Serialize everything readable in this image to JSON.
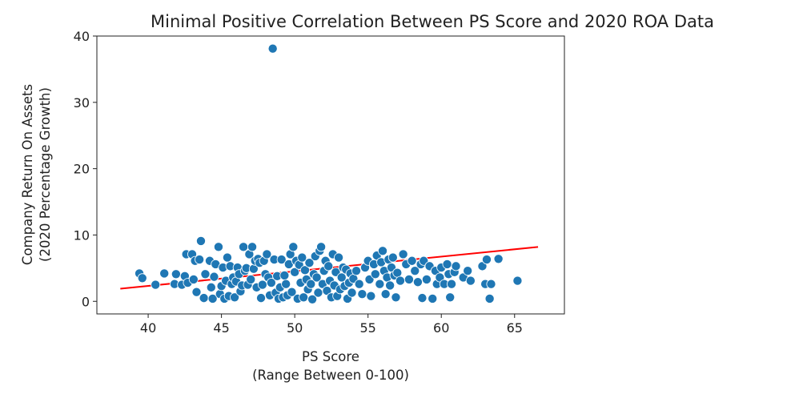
{
  "chart_data": {
    "type": "scatter",
    "title": "Minimal Positive Correlation Between PS Score and 2020 ROA Data",
    "xlabel": [
      "PS Score",
      "(Range Between 0-100)"
    ],
    "ylabel": [
      "Company Return On Assets",
      "(2020 Percentage Growth)"
    ],
    "xlim": [
      36.5,
      68.4
    ],
    "ylim": [
      -1.9,
      40.0
    ],
    "xticks": [
      40,
      45,
      50,
      55,
      60,
      65
    ],
    "yticks": [
      0,
      10,
      20,
      30,
      40
    ],
    "grid": false,
    "point_color": "#1f77b4",
    "trend_color": "#ff0000",
    "trendline": {
      "x": [
        38.1,
        66.6
      ],
      "y": [
        1.9,
        8.2
      ]
    },
    "points": [
      [
        39.4,
        4.2
      ],
      [
        39.6,
        3.5
      ],
      [
        40.5,
        2.5
      ],
      [
        41.1,
        4.2
      ],
      [
        41.8,
        2.6
      ],
      [
        41.9,
        4.1
      ],
      [
        42.3,
        2.5
      ],
      [
        42.5,
        3.8
      ],
      [
        42.6,
        7.1
      ],
      [
        42.7,
        2.8
      ],
      [
        43.0,
        7.1
      ],
      [
        43.1,
        3.3
      ],
      [
        43.2,
        6.1
      ],
      [
        43.3,
        1.4
      ],
      [
        43.5,
        6.3
      ],
      [
        43.6,
        9.1
      ],
      [
        43.8,
        0.5
      ],
      [
        43.9,
        4.1
      ],
      [
        44.2,
        6.1
      ],
      [
        44.3,
        2.1
      ],
      [
        44.4,
        0.4
      ],
      [
        44.5,
        3.7
      ],
      [
        44.6,
        5.6
      ],
      [
        44.8,
        8.2
      ],
      [
        44.9,
        1.1
      ],
      [
        45.0,
        2.3
      ],
      [
        45.1,
        5.1
      ],
      [
        45.2,
        0.4
      ],
      [
        45.3,
        3.1
      ],
      [
        45.4,
        6.6
      ],
      [
        45.5,
        0.8
      ],
      [
        45.6,
        5.3
      ],
      [
        45.7,
        2.6
      ],
      [
        45.8,
        3.6
      ],
      [
        45.9,
        0.6
      ],
      [
        46.0,
        3.0
      ],
      [
        46.1,
        5.1
      ],
      [
        46.2,
        4.1
      ],
      [
        46.3,
        1.5
      ],
      [
        46.4,
        2.4
      ],
      [
        46.5,
        8.2
      ],
      [
        46.6,
        4.6
      ],
      [
        46.7,
        5.0
      ],
      [
        46.8,
        2.5
      ],
      [
        46.9,
        7.1
      ],
      [
        47.0,
        3.3
      ],
      [
        47.1,
        8.2
      ],
      [
        47.2,
        4.9
      ],
      [
        47.3,
        6.1
      ],
      [
        47.4,
        2.1
      ],
      [
        47.5,
        6.4
      ],
      [
        47.6,
        5.8
      ],
      [
        47.7,
        0.5
      ],
      [
        47.8,
        2.5
      ],
      [
        47.9,
        6.1
      ],
      [
        48.0,
        4.1
      ],
      [
        48.1,
        7.1
      ],
      [
        48.2,
        3.6
      ],
      [
        48.3,
        0.9
      ],
      [
        48.4,
        2.8
      ],
      [
        48.5,
        38.1
      ],
      [
        48.6,
        6.3
      ],
      [
        48.7,
        1.3
      ],
      [
        48.8,
        3.8
      ],
      [
        48.9,
        0.4
      ],
      [
        49.0,
        2.1
      ],
      [
        49.1,
        6.3
      ],
      [
        49.2,
        0.6
      ],
      [
        49.3,
        3.9
      ],
      [
        49.4,
        2.6
      ],
      [
        49.5,
        0.9
      ],
      [
        49.6,
        5.6
      ],
      [
        49.7,
        7.1
      ],
      [
        49.8,
        1.4
      ],
      [
        49.9,
        8.2
      ],
      [
        50.0,
        4.4
      ],
      [
        50.1,
        6.1
      ],
      [
        50.2,
        0.4
      ],
      [
        50.3,
        5.5
      ],
      [
        50.4,
        2.8
      ],
      [
        50.5,
        6.6
      ],
      [
        50.6,
        0.6
      ],
      [
        50.7,
        4.7
      ],
      [
        50.8,
        3.3
      ],
      [
        50.9,
        1.8
      ],
      [
        51.0,
        5.8
      ],
      [
        51.1,
        2.6
      ],
      [
        51.2,
        0.3
      ],
      [
        51.3,
        4.1
      ],
      [
        51.4,
        6.8
      ],
      [
        51.5,
        3.6
      ],
      [
        51.6,
        1.3
      ],
      [
        51.7,
        7.6
      ],
      [
        51.8,
        8.2
      ],
      [
        51.9,
        2.6
      ],
      [
        52.0,
        4.6
      ],
      [
        52.1,
        6.1
      ],
      [
        52.2,
        1.6
      ],
      [
        52.3,
        5.3
      ],
      [
        52.4,
        3.1
      ],
      [
        52.5,
        0.6
      ],
      [
        52.6,
        7.1
      ],
      [
        52.7,
        2.4
      ],
      [
        52.8,
        4.4
      ],
      [
        52.9,
        0.8
      ],
      [
        53.0,
        6.6
      ],
      [
        53.1,
        1.8
      ],
      [
        53.2,
        3.6
      ],
      [
        53.3,
        5.1
      ],
      [
        53.4,
        2.3
      ],
      [
        53.5,
        4.8
      ],
      [
        53.6,
        0.4
      ],
      [
        53.7,
        2.8
      ],
      [
        53.8,
        4.2
      ],
      [
        53.9,
        1.3
      ],
      [
        54.0,
        3.4
      ],
      [
        54.2,
        4.6
      ],
      [
        54.4,
        2.6
      ],
      [
        54.6,
        1.1
      ],
      [
        54.8,
        5.1
      ],
      [
        55.0,
        6.1
      ],
      [
        55.1,
        3.3
      ],
      [
        55.2,
        0.8
      ],
      [
        55.4,
        5.6
      ],
      [
        55.5,
        4.1
      ],
      [
        55.6,
        6.9
      ],
      [
        55.8,
        2.6
      ],
      [
        55.9,
        5.9
      ],
      [
        56.0,
        7.6
      ],
      [
        56.1,
        4.6
      ],
      [
        56.2,
        1.1
      ],
      [
        56.3,
        3.6
      ],
      [
        56.4,
        6.3
      ],
      [
        56.5,
        2.4
      ],
      [
        56.6,
        5.1
      ],
      [
        56.7,
        6.6
      ],
      [
        56.8,
        3.9
      ],
      [
        56.9,
        0.6
      ],
      [
        57.0,
        4.3
      ],
      [
        57.2,
        3.1
      ],
      [
        57.4,
        7.1
      ],
      [
        57.6,
        5.6
      ],
      [
        57.8,
        3.3
      ],
      [
        58.0,
        6.1
      ],
      [
        58.2,
        4.6
      ],
      [
        58.4,
        2.9
      ],
      [
        58.6,
        5.6
      ],
      [
        58.7,
        0.5
      ],
      [
        58.8,
        6.1
      ],
      [
        59.0,
        3.3
      ],
      [
        59.2,
        5.3
      ],
      [
        59.4,
        0.4
      ],
      [
        59.6,
        4.6
      ],
      [
        59.7,
        2.6
      ],
      [
        59.9,
        3.6
      ],
      [
        60.0,
        5.1
      ],
      [
        60.2,
        2.6
      ],
      [
        60.4,
        5.6
      ],
      [
        60.5,
        4.1
      ],
      [
        60.6,
        0.6
      ],
      [
        60.7,
        2.6
      ],
      [
        60.9,
        4.4
      ],
      [
        61.0,
        5.3
      ],
      [
        61.5,
        3.6
      ],
      [
        61.8,
        4.6
      ],
      [
        62.0,
        3.1
      ],
      [
        62.8,
        5.3
      ],
      [
        63.0,
        2.6
      ],
      [
        63.1,
        6.3
      ],
      [
        63.3,
        0.4
      ],
      [
        63.4,
        2.6
      ],
      [
        63.9,
        6.4
      ],
      [
        65.2,
        3.1
      ]
    ]
  }
}
